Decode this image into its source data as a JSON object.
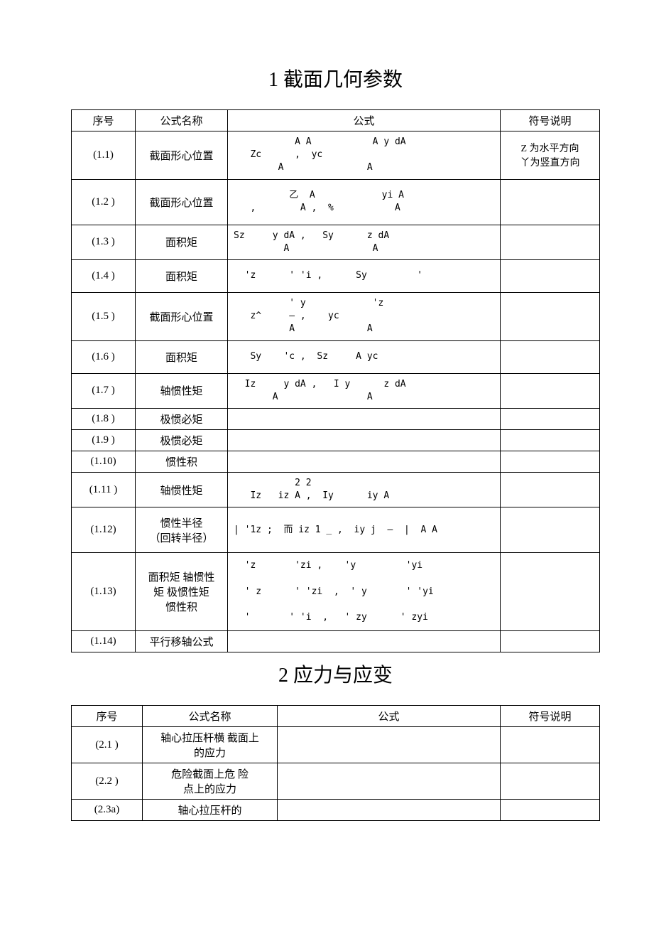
{
  "section1": {
    "title": "1 截面几何参数",
    "headers": {
      "seq": "序号",
      "name": "公式名称",
      "formula": "公式",
      "note": "符号说明"
    },
    "rows": [
      {
        "seq": "(1.1)",
        "name": "截面形心位置",
        "formula": "           A A           A y dA\n   Zc      ,  yc\n        A               A",
        "note": "Z 为水平方向\n丫为竖直方向",
        "h": "tall-1"
      },
      {
        "seq": "(1.2 )",
        "name": "截面形心位置",
        "formula": "          乙  A            yi A\n   ,        A ,  %           A",
        "note": "",
        "h": "tall-1"
      },
      {
        "seq": "(1.3 )",
        "name": "面积矩",
        "formula": "Sz     y dA ,   Sy      z dA\n         A               A",
        "note": "",
        "h": "med"
      },
      {
        "seq": "(1.4 )",
        "name": "面积矩",
        "formula": "  'z      ' 'i ,      Sy         '",
        "note": "",
        "h": "med"
      },
      {
        "seq": "(1.5 )",
        "name": "截面形心位置",
        "formula": "          ' y            'z\n   z^     — ,    yc\n          A             A",
        "note": "",
        "h": "tall-1"
      },
      {
        "seq": "(1.6 )",
        "name": "面积矩",
        "formula": "   Sy    'c ,  Sz     A yc",
        "note": "",
        "h": "med"
      },
      {
        "seq": "(1.7 )",
        "name": "轴惯性矩",
        "formula": "  Iz     y dA ,   I y      z dA\n       A                A",
        "note": "",
        "h": "med"
      },
      {
        "seq": "(1.8 )",
        "name": "极惯必矩",
        "formula": "",
        "note": "",
        "h": "short"
      },
      {
        "seq": "(1.9 )",
        "name": "极惯必矩",
        "formula": "",
        "note": "",
        "h": "short"
      },
      {
        "seq": "(1.10)",
        "name": "惯性积",
        "formula": "",
        "note": "",
        "h": "short"
      },
      {
        "seq": "(1.11 )",
        "name": "轴惯性矩",
        "formula": "           2 2\n   Iz   iz A ,  Iy      iy A",
        "note": "",
        "h": "med"
      },
      {
        "seq": "(1.12)",
        "name": "惯性半径\n（回转半径）",
        "formula": "| '1z ;  而 iz 1 _ ,  iy j  —  |  A A",
        "note": "",
        "h": "tall-1"
      },
      {
        "seq": "(1.13)",
        "name": "面积矩  轴惯性\n矩  极惯性矩\n惯性积",
        "formula": "  'z       'zi ,    'y         'yi\n\n  ' z      ' 'zi  ,  ' y       ' 'yi\n\n  '       ' 'i  ,   ' zy      ' zyi",
        "note": "",
        "h": "xl"
      },
      {
        "seq": "(1.14)",
        "name": "平行移轴公式",
        "formula": "",
        "note": "",
        "h": "short"
      }
    ]
  },
  "section2": {
    "title": "2 应力与应变",
    "headers": {
      "seq": "序号",
      "name": "公式名称",
      "formula": "公式",
      "note": "符号说明"
    },
    "rows": [
      {
        "seq": "(2.1 )",
        "name": "轴心拉压杆横 截面上\n的应力",
        "formula": "",
        "note": "",
        "h": "med"
      },
      {
        "seq": "(2.2 )",
        "name": "危险截面上危 险\n点上的应力",
        "formula": "",
        "note": "",
        "h": "med"
      },
      {
        "seq": "(2.3a)",
        "name": "轴心拉压杆的",
        "formula": "",
        "note": "",
        "h": "short"
      }
    ]
  },
  "cols": {
    "t1": {
      "c1": 90,
      "c2": 130,
      "c4": 140
    },
    "t2": {
      "c1": 100,
      "c2": 190,
      "c4": 140
    }
  }
}
